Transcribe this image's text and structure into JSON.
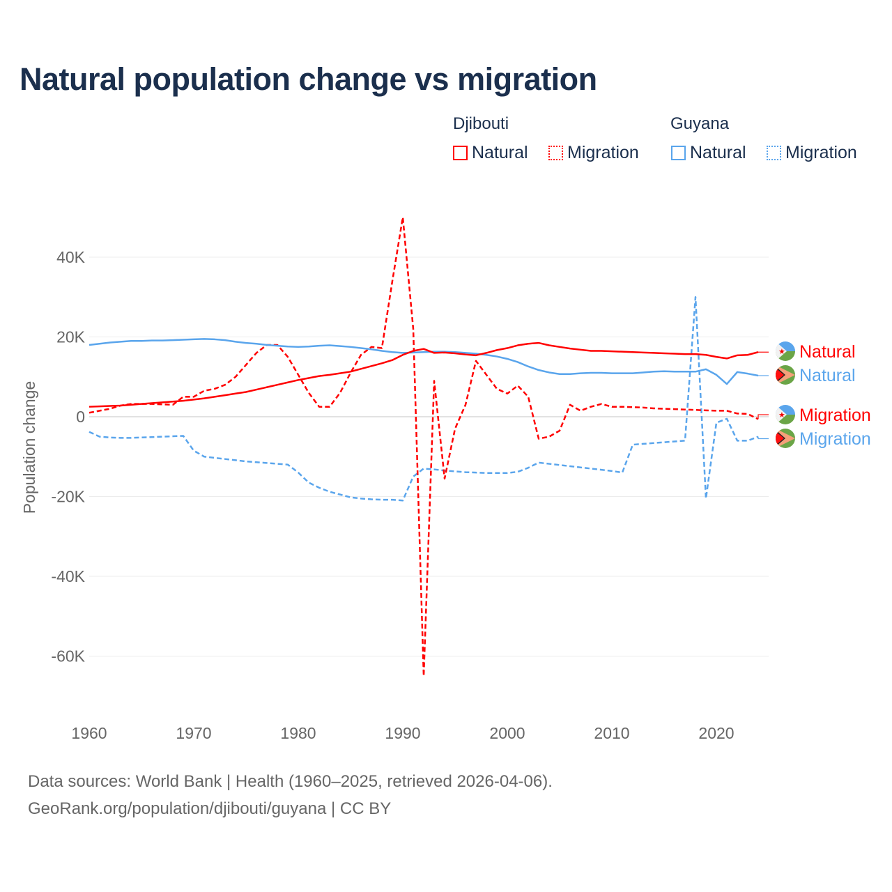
{
  "chart_data": {
    "type": "line",
    "title": "Natural population change vs migration",
    "ylabel": "Population change",
    "xlabel": "",
    "xlim": [
      1960,
      2025
    ],
    "ylim": [
      -70000,
      55000
    ],
    "x_ticks": [
      1960,
      1970,
      1980,
      1990,
      2000,
      2010,
      2020
    ],
    "x_tick_labels": [
      "1960",
      "1970",
      "1980",
      "1990",
      "2000",
      "2010",
      "2020"
    ],
    "y_ticks": [
      40000,
      20000,
      0,
      -20000,
      -40000,
      -60000
    ],
    "y_tick_labels": [
      "40K",
      "20K",
      "0",
      "-20K",
      "-40K",
      "-60K"
    ],
    "grid": true,
    "legend_placement": "top-right",
    "legend": {
      "groups": [
        {
          "country": "Djibouti",
          "items": [
            "Natural",
            "Migration"
          ]
        },
        {
          "country": "Guyana",
          "items": [
            "Natural",
            "Migration"
          ]
        }
      ]
    },
    "x_start": 1960,
    "series": [
      {
        "name": "Djibouti Natural",
        "country": "Djibouti",
        "kind": "Natural",
        "color": "#ff0000",
        "dash": false,
        "end_label": "Natural",
        "values": [
          2500,
          2600,
          2700,
          2800,
          3000,
          3200,
          3400,
          3600,
          3800,
          4000,
          4300,
          4600,
          5000,
          5400,
          5800,
          6200,
          6800,
          7400,
          8000,
          8600,
          9200,
          9700,
          10200,
          10500,
          10900,
          11300,
          12000,
          12700,
          13400,
          14200,
          15500,
          16500,
          17000,
          16000,
          16100,
          15900,
          15600,
          15400,
          16000,
          16700,
          17200,
          17900,
          18300,
          18500,
          17900,
          17500,
          17100,
          16800,
          16500,
          16500,
          16400,
          16300,
          16200,
          16100,
          16000,
          15900,
          15800,
          15700,
          15700,
          15500,
          15000,
          14600,
          15400,
          15500,
          16200,
          16200
        ]
      },
      {
        "name": "Guyana Natural",
        "country": "Guyana",
        "kind": "Natural",
        "color": "#5aa5ec",
        "dash": false,
        "end_label": "Natural",
        "values": [
          18000,
          18300,
          18600,
          18800,
          19000,
          19000,
          19100,
          19100,
          19200,
          19300,
          19400,
          19500,
          19400,
          19200,
          18800,
          18500,
          18300,
          18000,
          17800,
          17600,
          17500,
          17600,
          17800,
          17900,
          17700,
          17500,
          17200,
          16900,
          16500,
          16200,
          16000,
          16100,
          16200,
          16300,
          16300,
          16200,
          16000,
          15800,
          15500,
          15100,
          14500,
          13700,
          12600,
          11700,
          11100,
          10700,
          10700,
          10900,
          11000,
          11000,
          10900,
          10900,
          10900,
          11100,
          11300,
          11400,
          11300,
          11300,
          11300,
          11900,
          10500,
          8200,
          11200,
          10800,
          10300,
          10300
        ]
      },
      {
        "name": "Djibouti Migration",
        "country": "Djibouti",
        "kind": "Migration",
        "color": "#ff0000",
        "dash": true,
        "end_label": "Migration",
        "values": [
          1000,
          1500,
          2000,
          2800,
          3200,
          3200,
          3200,
          3100,
          3000,
          5000,
          5000,
          6500,
          7000,
          8000,
          10000,
          13000,
          16000,
          18000,
          18000,
          15000,
          10500,
          6000,
          2500,
          2500,
          6000,
          11000,
          15500,
          17500,
          17200,
          34000,
          50000,
          22000,
          -65000,
          9000,
          -15500,
          -3000,
          3000,
          14000,
          10500,
          7000,
          5800,
          7800,
          5000,
          -5500,
          -5000,
          -3500,
          3000,
          1500,
          2500,
          3200,
          2500,
          2500,
          2400,
          2300,
          2100,
          2000,
          1900,
          1800,
          1700,
          1600,
          1500,
          1500,
          800,
          700,
          -600,
          500
        ]
      },
      {
        "name": "Guyana Migration",
        "country": "Guyana",
        "kind": "Migration",
        "color": "#5aa5ec",
        "dash": true,
        "end_label": "Migration",
        "values": [
          -3800,
          -5000,
          -5200,
          -5300,
          -5300,
          -5200,
          -5100,
          -5000,
          -4900,
          -4800,
          -8500,
          -10000,
          -10300,
          -10600,
          -10900,
          -11200,
          -11400,
          -11600,
          -11800,
          -12000,
          -14000,
          -16500,
          -17800,
          -18800,
          -19500,
          -20200,
          -20500,
          -20700,
          -20800,
          -20800,
          -21000,
          -15000,
          -13000,
          -13200,
          -13500,
          -13700,
          -13900,
          -14000,
          -14100,
          -14100,
          -14100,
          -13800,
          -12800,
          -11500,
          -11800,
          -12100,
          -12400,
          -12700,
          -13000,
          -13300,
          -13600,
          -14000,
          -7000,
          -6800,
          -6600,
          -6400,
          -6200,
          -6000,
          30000,
          -20500,
          -1500,
          -500,
          -6000,
          -6000,
          -5000,
          -5500
        ]
      }
    ]
  },
  "sources": {
    "line1": "Data sources: World Bank | Health (1960–2025, retrieved 2026-04-06).",
    "line2": "GeoRank.org/population/djibouti/guyana | CC BY"
  }
}
